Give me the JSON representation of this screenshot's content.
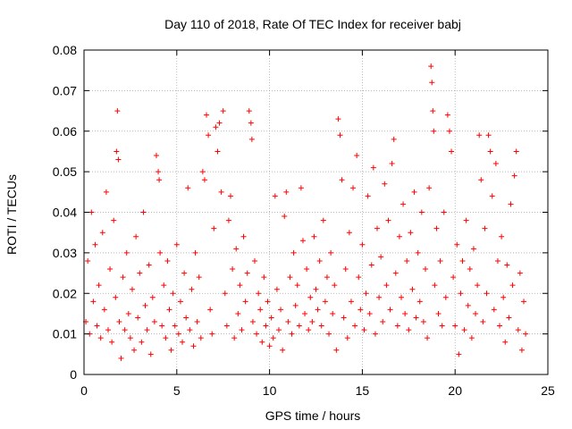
{
  "chart_data": {
    "type": "scatter",
    "title": "Day 110 of 2018, Rate Of TEC Index for receiver babj",
    "xlabel": "GPS time / hours",
    "ylabel": "ROTI / TECUs",
    "xlim": [
      0,
      25
    ],
    "ylim": [
      0,
      0.08
    ],
    "xticks": [
      0,
      5,
      10,
      15,
      20,
      25
    ],
    "xtick_labels": [
      "0",
      "5",
      "10",
      "15",
      "20",
      "25"
    ],
    "yticks": [
      0,
      0.01,
      0.02,
      0.03,
      0.04,
      0.05,
      0.06,
      0.07,
      0.08
    ],
    "ytick_labels": [
      "0",
      "0.01",
      "0.02",
      "0.03",
      "0.04",
      "0.05",
      "0.06",
      "0.07",
      "0.08"
    ],
    "grid": true,
    "marker": "+",
    "color": "#ff0000",
    "series": [
      {
        "name": "ROTI",
        "points": [
          [
            0.1,
            0.013
          ],
          [
            0.2,
            0.028
          ],
          [
            0.3,
            0.01
          ],
          [
            0.4,
            0.04
          ],
          [
            0.5,
            0.018
          ],
          [
            0.6,
            0.032
          ],
          [
            0.7,
            0.012
          ],
          [
            0.8,
            0.022
          ],
          [
            0.9,
            0.009
          ],
          [
            1.0,
            0.035
          ],
          [
            1.1,
            0.016
          ],
          [
            1.2,
            0.045
          ],
          [
            1.3,
            0.011
          ],
          [
            1.4,
            0.026
          ],
          [
            1.5,
            0.008
          ],
          [
            1.6,
            0.038
          ],
          [
            1.7,
            0.019
          ],
          [
            1.75,
            0.055
          ],
          [
            1.8,
            0.065
          ],
          [
            1.85,
            0.053
          ],
          [
            1.9,
            0.013
          ],
          [
            2.0,
            0.004
          ],
          [
            2.1,
            0.024
          ],
          [
            2.2,
            0.011
          ],
          [
            2.3,
            0.03
          ],
          [
            2.4,
            0.015
          ],
          [
            2.5,
            0.009
          ],
          [
            2.6,
            0.021
          ],
          [
            2.7,
            0.006
          ],
          [
            2.8,
            0.034
          ],
          [
            2.9,
            0.014
          ],
          [
            3.0,
            0.025
          ],
          [
            3.1,
            0.008
          ],
          [
            3.2,
            0.04
          ],
          [
            3.3,
            0.017
          ],
          [
            3.4,
            0.011
          ],
          [
            3.5,
            0.027
          ],
          [
            3.6,
            0.005
          ],
          [
            3.7,
            0.019
          ],
          [
            3.8,
            0.013
          ],
          [
            3.9,
            0.054
          ],
          [
            4.0,
            0.05
          ],
          [
            4.05,
            0.048
          ],
          [
            4.1,
            0.03
          ],
          [
            4.2,
            0.012
          ],
          [
            4.3,
            0.022
          ],
          [
            4.4,
            0.009
          ],
          [
            4.5,
            0.028
          ],
          [
            4.6,
            0.016
          ],
          [
            4.7,
            0.006
          ],
          [
            4.8,
            0.02
          ],
          [
            4.9,
            0.012
          ],
          [
            5.0,
            0.032
          ],
          [
            5.1,
            0.01
          ],
          [
            5.2,
            0.018
          ],
          [
            5.3,
            0.008
          ],
          [
            5.4,
            0.025
          ],
          [
            5.5,
            0.014
          ],
          [
            5.6,
            0.046
          ],
          [
            5.7,
            0.011
          ],
          [
            5.8,
            0.021
          ],
          [
            5.9,
            0.007
          ],
          [
            6.0,
            0.03
          ],
          [
            6.1,
            0.013
          ],
          [
            6.2,
            0.024
          ],
          [
            6.3,
            0.009
          ],
          [
            6.4,
            0.05
          ],
          [
            6.5,
            0.048
          ],
          [
            6.6,
            0.064
          ],
          [
            6.7,
            0.059
          ],
          [
            6.8,
            0.016
          ],
          [
            6.9,
            0.01
          ],
          [
            7.0,
            0.036
          ],
          [
            7.1,
            0.061
          ],
          [
            7.2,
            0.055
          ],
          [
            7.3,
            0.062
          ],
          [
            7.4,
            0.045
          ],
          [
            7.5,
            0.065
          ],
          [
            7.6,
            0.02
          ],
          [
            7.7,
            0.012
          ],
          [
            7.8,
            0.038
          ],
          [
            7.9,
            0.044
          ],
          [
            8.0,
            0.026
          ],
          [
            8.1,
            0.009
          ],
          [
            8.2,
            0.031
          ],
          [
            8.3,
            0.015
          ],
          [
            8.4,
            0.022
          ],
          [
            8.5,
            0.011
          ],
          [
            8.6,
            0.034
          ],
          [
            8.7,
            0.018
          ],
          [
            8.8,
            0.025
          ],
          [
            8.9,
            0.065
          ],
          [
            9.0,
            0.062
          ],
          [
            9.05,
            0.058
          ],
          [
            9.1,
            0.013
          ],
          [
            9.2,
            0.028
          ],
          [
            9.3,
            0.01
          ],
          [
            9.4,
            0.02
          ],
          [
            9.5,
            0.016
          ],
          [
            9.6,
            0.008
          ],
          [
            9.7,
            0.024
          ],
          [
            9.8,
            0.012
          ],
          [
            9.9,
            0.018
          ],
          [
            10.0,
            0.007
          ],
          [
            10.1,
            0.014
          ],
          [
            10.2,
            0.009
          ],
          [
            10.3,
            0.044
          ],
          [
            10.4,
            0.021
          ],
          [
            10.5,
            0.011
          ],
          [
            10.6,
            0.016
          ],
          [
            10.7,
            0.006
          ],
          [
            10.8,
            0.039
          ],
          [
            10.9,
            0.045
          ],
          [
            11.0,
            0.013
          ],
          [
            11.1,
            0.024
          ],
          [
            11.2,
            0.01
          ],
          [
            11.3,
            0.03
          ],
          [
            11.4,
            0.017
          ],
          [
            11.5,
            0.022
          ],
          [
            11.6,
            0.012
          ],
          [
            11.7,
            0.046
          ],
          [
            11.8,
            0.033
          ],
          [
            11.9,
            0.015
          ],
          [
            12.0,
            0.026
          ],
          [
            12.1,
            0.011
          ],
          [
            12.2,
            0.019
          ],
          [
            12.3,
            0.013
          ],
          [
            12.4,
            0.034
          ],
          [
            12.5,
            0.021
          ],
          [
            12.6,
            0.016
          ],
          [
            12.7,
            0.028
          ],
          [
            12.8,
            0.012
          ],
          [
            12.9,
            0.038
          ],
          [
            13.0,
            0.018
          ],
          [
            13.1,
            0.024
          ],
          [
            13.2,
            0.01
          ],
          [
            13.3,
            0.03
          ],
          [
            13.4,
            0.015
          ],
          [
            13.5,
            0.022
          ],
          [
            13.6,
            0.006
          ],
          [
            13.7,
            0.063
          ],
          [
            13.8,
            0.059
          ],
          [
            13.9,
            0.048
          ],
          [
            14.0,
            0.014
          ],
          [
            14.1,
            0.026
          ],
          [
            14.2,
            0.009
          ],
          [
            14.3,
            0.035
          ],
          [
            14.4,
            0.018
          ],
          [
            14.5,
            0.046
          ],
          [
            14.6,
            0.012
          ],
          [
            14.7,
            0.054
          ],
          [
            14.8,
            0.024
          ],
          [
            14.9,
            0.016
          ],
          [
            15.0,
            0.032
          ],
          [
            15.1,
            0.011
          ],
          [
            15.2,
            0.02
          ],
          [
            15.3,
            0.044
          ],
          [
            15.4,
            0.015
          ],
          [
            15.5,
            0.027
          ],
          [
            15.6,
            0.051
          ],
          [
            15.7,
            0.01
          ],
          [
            15.8,
            0.036
          ],
          [
            15.9,
            0.019
          ],
          [
            16.0,
            0.029
          ],
          [
            16.1,
            0.013
          ],
          [
            16.2,
            0.047
          ],
          [
            16.3,
            0.022
          ],
          [
            16.4,
            0.038
          ],
          [
            16.5,
            0.016
          ],
          [
            16.6,
            0.052
          ],
          [
            16.7,
            0.058
          ],
          [
            16.8,
            0.025
          ],
          [
            16.9,
            0.012
          ],
          [
            17.0,
            0.034
          ],
          [
            17.1,
            0.019
          ],
          [
            17.2,
            0.042
          ],
          [
            17.3,
            0.015
          ],
          [
            17.4,
            0.028
          ],
          [
            17.5,
            0.011
          ],
          [
            17.6,
            0.035
          ],
          [
            17.7,
            0.021
          ],
          [
            17.8,
            0.045
          ],
          [
            17.9,
            0.014
          ],
          [
            18.0,
            0.03
          ],
          [
            18.1,
            0.018
          ],
          [
            18.2,
            0.04
          ],
          [
            18.3,
            0.013
          ],
          [
            18.4,
            0.026
          ],
          [
            18.5,
            0.009
          ],
          [
            18.6,
            0.046
          ],
          [
            18.7,
            0.076
          ],
          [
            18.75,
            0.072
          ],
          [
            18.8,
            0.065
          ],
          [
            18.85,
            0.06
          ],
          [
            18.9,
            0.022
          ],
          [
            19.0,
            0.036
          ],
          [
            19.1,
            0.015
          ],
          [
            19.2,
            0.028
          ],
          [
            19.3,
            0.012
          ],
          [
            19.4,
            0.04
          ],
          [
            19.5,
            0.019
          ],
          [
            19.6,
            0.064
          ],
          [
            19.7,
            0.06
          ],
          [
            19.8,
            0.055
          ],
          [
            19.9,
            0.024
          ],
          [
            20.0,
            0.012
          ],
          [
            20.1,
            0.032
          ],
          [
            20.2,
            0.005
          ],
          [
            20.3,
            0.02
          ],
          [
            20.4,
            0.028
          ],
          [
            20.5,
            0.011
          ],
          [
            20.6,
            0.038
          ],
          [
            20.7,
            0.017
          ],
          [
            20.8,
            0.026
          ],
          [
            20.9,
            0.009
          ],
          [
            21.0,
            0.031
          ],
          [
            21.1,
            0.015
          ],
          [
            21.2,
            0.022
          ],
          [
            21.3,
            0.059
          ],
          [
            21.4,
            0.048
          ],
          [
            21.5,
            0.013
          ],
          [
            21.6,
            0.036
          ],
          [
            21.7,
            0.02
          ],
          [
            21.8,
            0.059
          ],
          [
            21.9,
            0.055
          ],
          [
            22.0,
            0.044
          ],
          [
            22.1,
            0.016
          ],
          [
            22.2,
            0.052
          ],
          [
            22.3,
            0.028
          ],
          [
            22.4,
            0.012
          ],
          [
            22.5,
            0.034
          ],
          [
            22.6,
            0.019
          ],
          [
            22.7,
            0.008
          ],
          [
            22.8,
            0.027
          ],
          [
            22.9,
            0.014
          ],
          [
            23.0,
            0.042
          ],
          [
            23.1,
            0.022
          ],
          [
            23.2,
            0.049
          ],
          [
            23.3,
            0.055
          ],
          [
            23.4,
            0.011
          ],
          [
            23.5,
            0.025
          ],
          [
            23.6,
            0.006
          ],
          [
            23.7,
            0.018
          ],
          [
            23.8,
            0.01
          ]
        ]
      }
    ]
  }
}
